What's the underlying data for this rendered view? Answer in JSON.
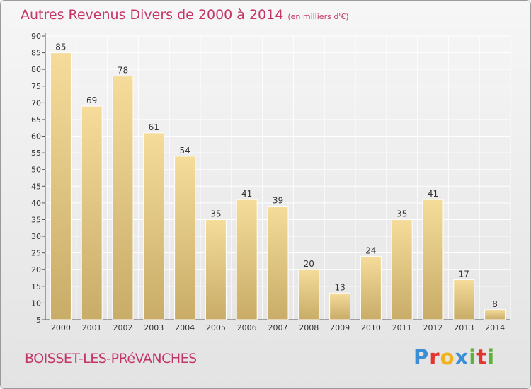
{
  "chart_data": {
    "type": "bar",
    "title": "Autres Revenus Divers de 2000 à 2014",
    "unit": "(en milliers d'€)",
    "categories": [
      "2000",
      "2001",
      "2002",
      "2003",
      "2004",
      "2005",
      "2006",
      "2007",
      "2008",
      "2009",
      "2010",
      "2011",
      "2012",
      "2013",
      "2014"
    ],
    "values": [
      85,
      69,
      78,
      61,
      54,
      35,
      41,
      39,
      20,
      13,
      24,
      35,
      41,
      17,
      8
    ],
    "ylim": [
      5,
      90
    ],
    "yticks": [
      5,
      10,
      15,
      20,
      25,
      30,
      35,
      40,
      45,
      50,
      55,
      60,
      65,
      70,
      75,
      80,
      85,
      90
    ],
    "grid": true,
    "legend": "none",
    "colors": {
      "bar_top": "#f5dc9a",
      "bar_bottom": "#c8ac68",
      "title": "#c4366a",
      "grid": "#ffffff"
    }
  },
  "footer": {
    "commune": "BOISSET-LES-PRéVANCHES",
    "brand_letters": [
      {
        "ch": "P",
        "color": "#3a8fd6"
      },
      {
        "ch": "r",
        "color": "#e2352f"
      },
      {
        "ch": "o",
        "color": "#f2b21b"
      },
      {
        "ch": "x",
        "color": "#3a8fd6"
      },
      {
        "ch": "i",
        "color": "#5db33a"
      },
      {
        "ch": "t",
        "color": "#e2352f"
      },
      {
        "ch": "i",
        "color": "#5db33a"
      }
    ]
  }
}
